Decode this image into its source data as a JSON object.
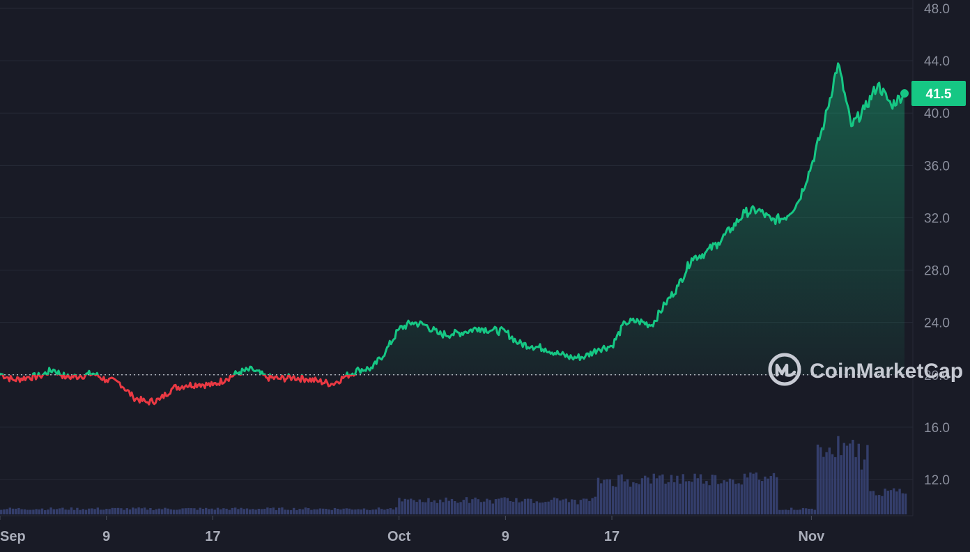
{
  "chart_data": {
    "type": "line",
    "title": "",
    "xlabel": "",
    "ylabel": "",
    "ylim": [
      10.0,
      48.0
    ],
    "y_ticks": [
      "48.0",
      "44.0",
      "40.0",
      "36.0",
      "32.0",
      "28.0",
      "24.0",
      "20.0",
      "16.0",
      "12.0"
    ],
    "x_ticks": [
      {
        "date": "2023-09-01",
        "label": "Sep"
      },
      {
        "date": "2023-09-09",
        "label": "9"
      },
      {
        "date": "2023-09-17",
        "label": "17"
      },
      {
        "date": "2023-10-01",
        "label": "Oct"
      },
      {
        "date": "2023-10-09",
        "label": "9"
      },
      {
        "date": "2023-10-17",
        "label": "17"
      },
      {
        "date": "2023-11-01",
        "label": "Nov"
      }
    ],
    "x_range": [
      "2023-09-01",
      "2023-11-08"
    ],
    "reference_price": 20.0,
    "current_price": "41.5",
    "colors": {
      "up": "#16c784",
      "down": "#ea3943",
      "background": "#191b26",
      "grid": "#262a36",
      "volume": "#3a4478",
      "badge": "#16c784"
    },
    "grid": true,
    "series": [
      {
        "values": [
          [
            "2023-09-01",
            20.1
          ],
          [
            "2023-09-02",
            19.6
          ],
          [
            "2023-09-03",
            19.8
          ],
          [
            "2023-09-04",
            19.9
          ],
          [
            "2023-09-05",
            20.4
          ],
          [
            "2023-09-06",
            19.8
          ],
          [
            "2023-09-07",
            19.9
          ],
          [
            "2023-09-08",
            20.1
          ],
          [
            "2023-09-09",
            19.6
          ],
          [
            "2023-09-10",
            19.4
          ],
          [
            "2023-09-11",
            18.3
          ],
          [
            "2023-09-12",
            17.9
          ],
          [
            "2023-09-13",
            18.1
          ],
          [
            "2023-09-14",
            19.0
          ],
          [
            "2023-09-15",
            19.2
          ],
          [
            "2023-09-16",
            19.3
          ],
          [
            "2023-09-17",
            19.2
          ],
          [
            "2023-09-18",
            19.7
          ],
          [
            "2023-09-19",
            20.2
          ],
          [
            "2023-09-20",
            20.4
          ],
          [
            "2023-09-21",
            19.8
          ],
          [
            "2023-09-22",
            19.7
          ],
          [
            "2023-09-23",
            19.8
          ],
          [
            "2023-09-24",
            19.7
          ],
          [
            "2023-09-25",
            19.5
          ],
          [
            "2023-09-26",
            19.3
          ],
          [
            "2023-09-27",
            19.9
          ],
          [
            "2023-09-28",
            20.4
          ],
          [
            "2023-09-29",
            20.5
          ],
          [
            "2023-09-30",
            21.8
          ],
          [
            "2023-10-01",
            23.5
          ],
          [
            "2023-10-02",
            24.0
          ],
          [
            "2023-10-03",
            23.8
          ],
          [
            "2023-10-04",
            23.1
          ],
          [
            "2023-10-05",
            23.1
          ],
          [
            "2023-10-06",
            23.3
          ],
          [
            "2023-10-07",
            23.6
          ],
          [
            "2023-10-08",
            23.4
          ],
          [
            "2023-10-09",
            23.3
          ],
          [
            "2023-10-10",
            22.4
          ],
          [
            "2023-10-11",
            22.2
          ],
          [
            "2023-10-12",
            22.0
          ],
          [
            "2023-10-13",
            21.6
          ],
          [
            "2023-10-14",
            21.3
          ],
          [
            "2023-10-15",
            21.4
          ],
          [
            "2023-10-16",
            22.0
          ],
          [
            "2023-10-17",
            22.2
          ],
          [
            "2023-10-18",
            24.0
          ],
          [
            "2023-10-19",
            24.1
          ],
          [
            "2023-10-20",
            23.8
          ],
          [
            "2023-10-21",
            25.4
          ],
          [
            "2023-10-22",
            26.8
          ],
          [
            "2023-10-23",
            28.9
          ],
          [
            "2023-10-24",
            29.3
          ],
          [
            "2023-10-25",
            30.1
          ],
          [
            "2023-10-26",
            31.2
          ],
          [
            "2023-10-27",
            32.4
          ],
          [
            "2023-10-28",
            32.6
          ],
          [
            "2023-10-29",
            31.8
          ],
          [
            "2023-10-30",
            32.0
          ],
          [
            "2023-10-31",
            33.2
          ],
          [
            "2023-11-01",
            36.0
          ],
          [
            "2023-11-02",
            39.4
          ],
          [
            "2023-11-03",
            43.8
          ],
          [
            "2023-11-04",
            39.0
          ],
          [
            "2023-11-05",
            40.3
          ],
          [
            "2023-11-06",
            42.2
          ],
          [
            "2023-11-07",
            40.6
          ],
          [
            "2023-11-08",
            41.5
          ]
        ]
      }
    ]
  },
  "watermark": {
    "brand_name": "CoinMarketCap",
    "logo_icon": "coinmarketcap-logo-icon"
  }
}
